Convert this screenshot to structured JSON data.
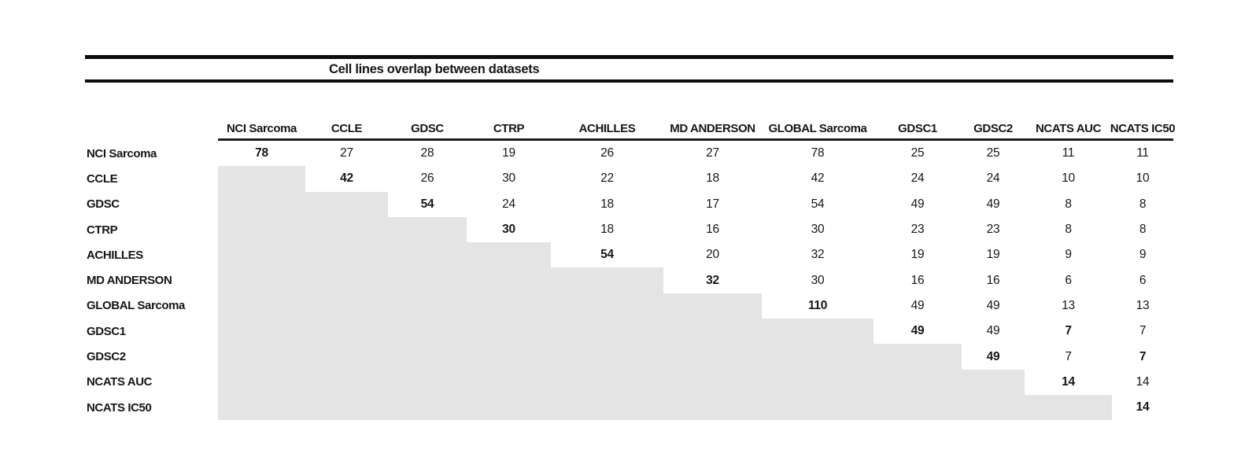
{
  "chart_data": {
    "type": "table",
    "title": "Cell lines overlap between datasets",
    "columns": [
      "NCI Sarcoma",
      "CCLE",
      "GDSC",
      "CTRP",
      "ACHILLES",
      "MD ANDERSON",
      "GLOBAL Sarcoma",
      "GDSC1",
      "GDSC2",
      "NCATS AUC",
      "NCATS IC50"
    ],
    "rows": [
      {
        "label": "NCI Sarcoma",
        "values": [
          78,
          27,
          28,
          19,
          26,
          27,
          78,
          25,
          25,
          11,
          11
        ]
      },
      {
        "label": "CCLE",
        "values": [
          null,
          42,
          26,
          30,
          22,
          18,
          42,
          24,
          24,
          10,
          10
        ]
      },
      {
        "label": "GDSC",
        "values": [
          null,
          null,
          54,
          24,
          18,
          17,
          54,
          49,
          49,
          8,
          8
        ]
      },
      {
        "label": "CTRP",
        "values": [
          null,
          null,
          null,
          30,
          18,
          16,
          30,
          23,
          23,
          8,
          8
        ]
      },
      {
        "label": "ACHILLES",
        "values": [
          null,
          null,
          null,
          null,
          54,
          20,
          32,
          19,
          19,
          9,
          9
        ]
      },
      {
        "label": "MD ANDERSON",
        "values": [
          null,
          null,
          null,
          null,
          null,
          32,
          30,
          16,
          16,
          6,
          6
        ]
      },
      {
        "label": "GLOBAL Sarcoma",
        "values": [
          null,
          null,
          null,
          null,
          null,
          null,
          110,
          49,
          49,
          13,
          13
        ]
      },
      {
        "label": "GDSC1",
        "values": [
          null,
          null,
          null,
          null,
          null,
          null,
          null,
          49,
          49,
          7,
          7
        ]
      },
      {
        "label": "GDSC2",
        "values": [
          null,
          null,
          null,
          null,
          null,
          null,
          null,
          null,
          49,
          7,
          7
        ]
      },
      {
        "label": "NCATS AUC",
        "values": [
          null,
          null,
          null,
          null,
          null,
          null,
          null,
          null,
          null,
          14,
          14
        ]
      },
      {
        "label": "NCATS IC50",
        "values": [
          null,
          null,
          null,
          null,
          null,
          null,
          null,
          null,
          null,
          null,
          14
        ]
      }
    ],
    "bold_cells": [
      [
        0,
        0
      ],
      [
        1,
        1
      ],
      [
        2,
        2
      ],
      [
        3,
        3
      ],
      [
        4,
        4
      ],
      [
        5,
        5
      ],
      [
        6,
        6
      ],
      [
        7,
        7
      ],
      [
        7,
        9
      ],
      [
        8,
        8
      ],
      [
        8,
        10
      ],
      [
        9,
        9
      ],
      [
        10,
        10
      ]
    ],
    "shaded_below_diagonal": true,
    "shaded_color": "#e5e4e5",
    "layout": {
      "legend_position": "none",
      "grid": false,
      "shading_note": "cells below the diagonal are blank and gray-shaded in a staircase pattern"
    }
  }
}
